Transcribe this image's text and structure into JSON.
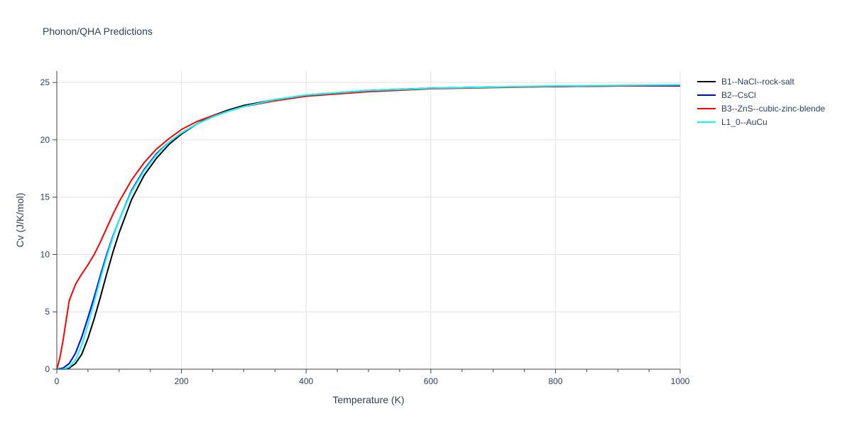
{
  "chart_data": {
    "type": "line",
    "title": "Phonon/QHA Predictions",
    "xlabel": "Temperature (K)",
    "ylabel": "Cv (J/K/mol)",
    "xlim": [
      0,
      1000
    ],
    "ylim": [
      0,
      26
    ],
    "xticks": [
      0,
      200,
      400,
      600,
      800,
      1000
    ],
    "yticks": [
      0,
      5,
      10,
      15,
      20,
      25
    ],
    "grid": true,
    "legend_position": "top-right",
    "series": [
      {
        "name": "B1--NaCl--rock-salt",
        "color": "#000000",
        "x": [
          0,
          10,
          20,
          30,
          40,
          50,
          60,
          70,
          80,
          90,
          100,
          120,
          140,
          160,
          180,
          200,
          225,
          250,
          275,
          300,
          350,
          400,
          450,
          500,
          600,
          700,
          800,
          900,
          1000
        ],
        "y": [
          0,
          0.0,
          0.1,
          0.5,
          1.3,
          2.7,
          4.4,
          6.3,
          8.3,
          10.2,
          11.9,
          14.8,
          16.9,
          18.4,
          19.6,
          20.5,
          21.4,
          22.1,
          22.6,
          23.0,
          23.5,
          23.9,
          24.1,
          24.3,
          24.5,
          24.6,
          24.65,
          24.7,
          24.7
        ]
      },
      {
        "name": "B2--CsCl",
        "color": "#0000ff",
        "x": [
          0,
          10,
          20,
          30,
          40,
          50,
          60,
          70,
          80,
          90,
          100,
          120,
          140,
          160,
          180,
          200,
          225,
          250,
          275,
          300,
          350,
          400,
          450,
          500,
          600,
          700,
          800,
          900,
          1000
        ],
        "y": [
          0,
          0.1,
          0.5,
          1.4,
          2.8,
          4.5,
          6.3,
          8.2,
          10.0,
          11.6,
          13.0,
          15.6,
          17.4,
          18.8,
          19.8,
          20.6,
          21.4,
          22.0,
          22.5,
          22.9,
          23.5,
          23.8,
          24.1,
          24.3,
          24.5,
          24.6,
          24.65,
          24.7,
          24.7
        ]
      },
      {
        "name": "B3--ZnS--cubic-zinc-blende",
        "color": "#ff0000",
        "x": [
          0,
          5,
          10,
          20,
          30,
          40,
          50,
          60,
          70,
          80,
          90,
          100,
          120,
          140,
          160,
          180,
          200,
          225,
          250,
          275,
          300,
          350,
          400,
          450,
          500,
          600,
          700,
          800,
          900,
          1000
        ],
        "y": [
          0,
          1.0,
          2.5,
          6.0,
          7.4,
          8.3,
          9.1,
          10.0,
          11.1,
          12.3,
          13.5,
          14.6,
          16.5,
          18.0,
          19.2,
          20.1,
          20.9,
          21.6,
          22.1,
          22.5,
          22.9,
          23.4,
          23.8,
          24.0,
          24.2,
          24.45,
          24.55,
          24.65,
          24.7,
          24.75
        ]
      },
      {
        "name": "L1_0--AuCu",
        "color": "#00ffff",
        "x": [
          0,
          10,
          20,
          30,
          40,
          50,
          60,
          70,
          80,
          90,
          100,
          120,
          140,
          160,
          180,
          200,
          225,
          250,
          275,
          300,
          350,
          400,
          450,
          500,
          600,
          700,
          800,
          900,
          1000
        ],
        "y": [
          0,
          0.0,
          0.2,
          0.8,
          2.1,
          3.9,
          5.9,
          7.9,
          9.8,
          11.5,
          13.0,
          15.5,
          17.3,
          18.7,
          19.8,
          20.6,
          21.4,
          22.0,
          22.5,
          22.9,
          23.5,
          23.9,
          24.1,
          24.3,
          24.5,
          24.6,
          24.7,
          24.75,
          24.8
        ]
      }
    ]
  }
}
